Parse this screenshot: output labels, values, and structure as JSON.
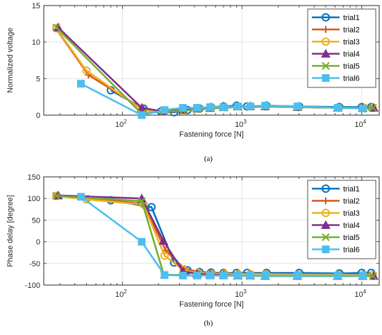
{
  "chart_data": [
    {
      "type": "line",
      "caption": "(a)",
      "xlabel": "Fastening force [N]",
      "ylabel": "Normalized voltage",
      "xscale": "log",
      "xlim": [
        22,
        14000
      ],
      "ylim": [
        0,
        15
      ],
      "yticks": [
        0,
        5,
        10,
        15
      ],
      "xticks": [
        {
          "value": 100,
          "base": "10",
          "exp": "2"
        },
        {
          "value": 1000,
          "base": "10",
          "exp": "3"
        },
        {
          "value": 10000,
          "base": "10",
          "exp": "4"
        }
      ],
      "grid": true,
      "legend_position": "top-right",
      "series": [
        {
          "name": "trial1",
          "color": "#0072BD",
          "marker": "circle",
          "x": [
            80,
            150,
            210,
            270,
            350,
            440,
            550,
            700,
            900,
            1100,
            1600,
            3000,
            6500,
            10000,
            12000
          ],
          "y": [
            3.4,
            0.9,
            0.5,
            0.4,
            0.7,
            0.9,
            1.1,
            1.2,
            1.3,
            1.2,
            1.3,
            1.2,
            1.1,
            1.1,
            1.1
          ]
        },
        {
          "name": "trial2",
          "color": "#D95319",
          "marker": "plus",
          "x": [
            28,
            52,
            150,
            230,
            330,
            440,
            560,
            720,
            950,
            1200,
            1600,
            3000,
            6500,
            10500,
            12500
          ],
          "y": [
            11.8,
            5.5,
            0.8,
            0.4,
            0.6,
            0.9,
            1.0,
            1.0,
            1.2,
            1.1,
            1.2,
            1.1,
            1.0,
            1.0,
            1.0
          ]
        },
        {
          "name": "trial3",
          "color": "#EDB120",
          "marker": "circle",
          "x": [
            28,
            50,
            150,
            225,
            325,
            430,
            550,
            710,
            930,
            1180,
            1580,
            2950,
            6400,
            10300,
            12300
          ],
          "y": [
            11.9,
            6.1,
            0.6,
            0.5,
            0.7,
            0.9,
            1.0,
            1.1,
            1.2,
            1.2,
            1.2,
            1.1,
            1.0,
            1.0,
            1.0
          ]
        },
        {
          "name": "trial4",
          "color": "#7E2F8E",
          "marker": "triangle",
          "x": [
            29,
            145,
            220,
            320,
            420,
            540,
            700,
            920,
            1170,
            1560,
            2900,
            6300,
            10200,
            12600
          ],
          "y": [
            12.0,
            1.0,
            0.5,
            0.7,
            0.9,
            1.0,
            1.1,
            1.2,
            1.2,
            1.2,
            1.1,
            1.0,
            1.0,
            1.0
          ]
        },
        {
          "name": "trial5",
          "color": "#77AC30",
          "marker": "x",
          "x": [
            28,
            145,
            222,
            322,
            425,
            545,
            705,
            925,
            1175,
            1565,
            2920,
            6350,
            10250,
            12400
          ],
          "y": [
            12.0,
            0.2,
            0.5,
            0.6,
            0.8,
            0.9,
            1.0,
            1.1,
            1.2,
            1.2,
            1.1,
            1.0,
            1.0,
            1.0
          ]
        },
        {
          "name": "trial6",
          "color": "#4DBEEE",
          "marker": "square",
          "x": [
            45,
            145,
            225,
            320,
            420,
            540,
            700,
            920,
            1170,
            1560,
            2900,
            6300,
            10200
          ],
          "y": [
            4.3,
            0.0,
            0.7,
            1.0,
            1.0,
            1.1,
            1.1,
            1.2,
            1.2,
            1.3,
            1.2,
            1.0,
            0.9
          ]
        }
      ]
    },
    {
      "type": "line",
      "caption": "(b)",
      "xlabel": "Fastening force [N]",
      "ylabel": "Phase delay [degree]",
      "xscale": "log",
      "xlim": [
        22,
        14000
      ],
      "ylim": [
        -100,
        150
      ],
      "yticks": [
        -100,
        -50,
        0,
        50,
        100,
        150
      ],
      "xticks": [
        {
          "value": 100,
          "base": "10",
          "exp": "2"
        },
        {
          "value": 1000,
          "base": "10",
          "exp": "3"
        },
        {
          "value": 10000,
          "base": "10",
          "exp": "4"
        }
      ],
      "grid": true,
      "legend_position": "top-right",
      "series": [
        {
          "name": "trial1",
          "color": "#0072BD",
          "marker": "circle",
          "x": [
            28,
            80,
            175,
            270,
            350,
            440,
            550,
            700,
            900,
            1100,
            1600,
            3000,
            6500,
            10000,
            12000
          ],
          "y": [
            106,
            96,
            80,
            -48,
            -66,
            -70,
            -71,
            -72,
            -72,
            -72,
            -72,
            -72,
            -73,
            -72,
            -72
          ]
        },
        {
          "name": "trial2",
          "color": "#D95319",
          "marker": "plus",
          "x": [
            28,
            52,
            150,
            230,
            330,
            440,
            560,
            720,
            950,
            1200,
            1600,
            3000,
            6500,
            10500,
            12500
          ],
          "y": [
            106,
            100,
            88,
            -20,
            -62,
            -70,
            -72,
            -73,
            -74,
            -74,
            -74,
            -75,
            -76,
            -76,
            -76
          ]
        },
        {
          "name": "trial3",
          "color": "#EDB120",
          "marker": "circle",
          "x": [
            28,
            50,
            150,
            225,
            325,
            430,
            550,
            710,
            930,
            1180,
            1580,
            2950,
            6400,
            10300,
            12300
          ],
          "y": [
            106,
            98,
            86,
            -32,
            -66,
            -72,
            -74,
            -74,
            -75,
            -75,
            -75,
            -76,
            -76,
            -77,
            -77
          ]
        },
        {
          "name": "trial4",
          "color": "#7E2F8E",
          "marker": "triangle",
          "x": [
            29,
            145,
            220,
            320,
            420,
            540,
            700,
            920,
            1170,
            1560,
            2900,
            6300,
            10200,
            12600
          ],
          "y": [
            107,
            100,
            2,
            -68,
            -74,
            -76,
            -77,
            -78,
            -78,
            -79,
            -79,
            -79,
            -79,
            -79
          ]
        },
        {
          "name": "trial5",
          "color": "#77AC30",
          "marker": "x",
          "x": [
            28,
            145,
            222,
            322,
            425,
            545,
            705,
            925,
            1175,
            1565,
            2920,
            6350,
            10250,
            12400
          ],
          "y": [
            106,
            94,
            -76,
            -77,
            -78,
            -78,
            -78,
            -79,
            -79,
            -79,
            -79,
            -79,
            -79,
            -79
          ]
        },
        {
          "name": "trial6",
          "color": "#4DBEEE",
          "marker": "square",
          "x": [
            45,
            145,
            225,
            320,
            420,
            540,
            700,
            920,
            1170,
            1560,
            2900,
            6300,
            10200
          ],
          "y": [
            104,
            0,
            -77,
            -78,
            -78,
            -78,
            -78,
            -78,
            -78,
            -78,
            -78,
            -78,
            -78
          ]
        }
      ]
    }
  ]
}
